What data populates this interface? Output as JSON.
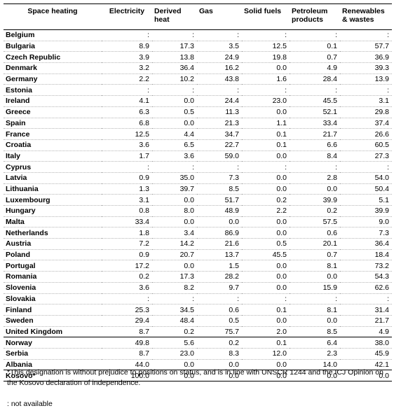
{
  "table": {
    "headers": [
      "Space heating",
      "Electricity",
      "Derived heat",
      "Gas",
      "Solid fuels",
      "Petroleum products",
      "Renewables & wastes"
    ],
    "rows": [
      [
        "Belgium",
        ":",
        ":",
        ":",
        ":",
        ":",
        ":"
      ],
      [
        "Bulgaria",
        "8.9",
        "17.3",
        "3.5",
        "12.5",
        "0.1",
        "57.7"
      ],
      [
        "Czech Republic",
        "3.9",
        "13.8",
        "24.9",
        "19.8",
        "0.7",
        "36.9"
      ],
      [
        "Denmark",
        "3.2",
        "36.4",
        "16.2",
        "0.0",
        "4.9",
        "39.3"
      ],
      [
        "Germany",
        "2.2",
        "10.2",
        "43.8",
        "1.6",
        "28.4",
        "13.9"
      ],
      [
        "Estonia",
        ":",
        ":",
        ":",
        ":",
        ":",
        ":"
      ],
      [
        "Ireland",
        "4.1",
        "0.0",
        "24.4",
        "23.0",
        "45.5",
        "3.1"
      ],
      [
        "Greece",
        "6.3",
        "0.5",
        "11.3",
        "0.0",
        "52.1",
        "29.8"
      ],
      [
        "Spain",
        "6.8",
        "0.0",
        "21.3",
        "1.1",
        "33.4",
        "37.4"
      ],
      [
        "France",
        "12.5",
        "4.4",
        "34.7",
        "0.1",
        "21.7",
        "26.6"
      ],
      [
        "Croatia",
        "3.6",
        "6.5",
        "22.7",
        "0.1",
        "6.6",
        "60.5"
      ],
      [
        "Italy",
        "1.7",
        "3.6",
        "59.0",
        "0.0",
        "8.4",
        "27.3"
      ],
      [
        "Cyprus",
        ":",
        ":",
        ":",
        ":",
        ":",
        ":"
      ],
      [
        "Latvia",
        "0.9",
        "35.0",
        "7.3",
        "0.0",
        "2.8",
        "54.0"
      ],
      [
        "Lithuania",
        "1.3",
        "39.7",
        "8.5",
        "0.0",
        "0.0",
        "50.4"
      ],
      [
        "Luxembourg",
        "3.1",
        "0.0",
        "51.7",
        "0.2",
        "39.9",
        "5.1"
      ],
      [
        "Hungary",
        "0.8",
        "8.0",
        "48.9",
        "2.2",
        "0.2",
        "39.9"
      ],
      [
        "Malta",
        "33.4",
        "0.0",
        "0.0",
        "0.0",
        "57.5",
        "9.0"
      ],
      [
        "Netherlands",
        "1.8",
        "3.4",
        "86.9",
        "0.0",
        "0.6",
        "7.3"
      ],
      [
        "Austria",
        "7.2",
        "14.2",
        "21.6",
        "0.5",
        "20.1",
        "36.4"
      ],
      [
        "Poland",
        "0.9",
        "20.7",
        "13.7",
        "45.5",
        "0.7",
        "18.4"
      ],
      [
        "Portugal",
        "17.2",
        "0.0",
        "1.5",
        "0.0",
        "8.1",
        "73.2"
      ],
      [
        "Romania",
        "0.2",
        "17.3",
        "28.2",
        "0.0",
        "0.0",
        "54.3"
      ],
      [
        "Slovenia",
        "3.6",
        "8.2",
        "9.7",
        "0.0",
        "15.9",
        "62.6"
      ],
      [
        "Slovakia",
        ":",
        ":",
        ":",
        ":",
        ":",
        ":"
      ],
      [
        "Finland",
        "25.3",
        "34.5",
        "0.6",
        "0.1",
        "8.1",
        "31.4"
      ],
      [
        "Sweden",
        "29.4",
        "48.4",
        "0.5",
        "0.0",
        "0.0",
        "21.7"
      ],
      [
        "United Kingdom",
        "8.7",
        "0.2",
        "75.7",
        "2.0",
        "8.5",
        "4.9"
      ],
      [
        "Norway",
        "49.8",
        "5.6",
        "0.2",
        "0.1",
        "6.4",
        "38.0"
      ],
      [
        "Serbia",
        "8.7",
        "23.0",
        "8.3",
        "12.0",
        "2.3",
        "45.9"
      ],
      [
        "Albania",
        "44.0",
        "0.0",
        "0.0",
        "0.0",
        "14.0",
        "42.1"
      ],
      [
        "Kosovo*",
        "100.0",
        "0.0",
        "0.0",
        "0.0",
        "0.0",
        "0.0"
      ]
    ]
  },
  "footnote": "*This designation is without prejudice to positions on status, and is in line with UNSCR 1244 and the ICJ Opinion on the Kosovo declaration of independence.",
  "legend": ": not available"
}
